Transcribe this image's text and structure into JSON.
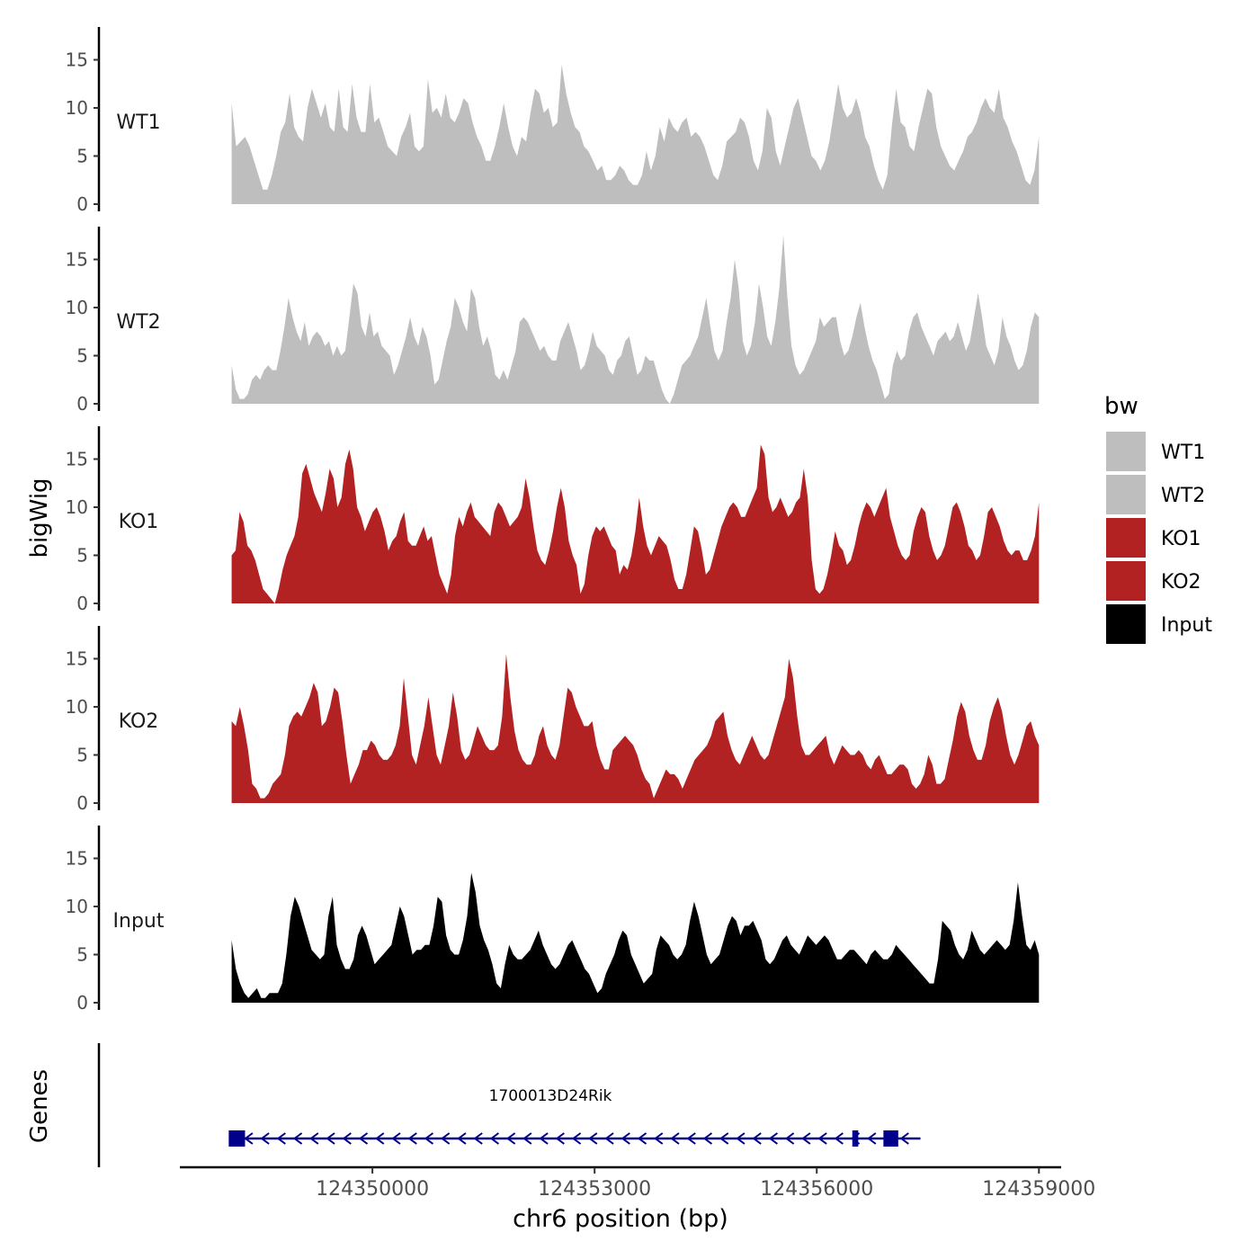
{
  "chart_data": {
    "type": "area",
    "ylabel": "bigWig",
    "xlabel": "chr6 position (bp)",
    "x_ticks": [
      124350000,
      124353000,
      124356000,
      124359000
    ],
    "x_tick_labels": [
      "124350000",
      "124353000",
      "124356000",
      "124359000"
    ],
    "xlim": [
      124347400,
      124359300
    ],
    "data_x_range": [
      124348100,
      124359000
    ],
    "ylim": [
      0,
      18
    ],
    "y_ticks": [
      0,
      5,
      10,
      15
    ],
    "y_tick_labels": [
      "0",
      "5",
      "10",
      "15"
    ],
    "legend": {
      "title": "bw",
      "position": "right",
      "entries": [
        {
          "label": "WT1",
          "color": "#BEBEBE"
        },
        {
          "label": "WT2",
          "color": "#BEBEBE"
        },
        {
          "label": "KO1",
          "color": "#B22222"
        },
        {
          "label": "KO2",
          "color": "#B22222"
        },
        {
          "label": "Input",
          "color": "#000000"
        }
      ]
    },
    "series": [
      {
        "name": "WT1",
        "color": "#BEBEBE",
        "values": [
          10.5,
          6,
          6.5,
          7,
          6,
          4.5,
          3,
          1.5,
          1.5,
          3,
          5,
          7.5,
          8.5,
          11.5,
          8,
          7,
          6.5,
          10,
          12,
          10.5,
          9,
          10.5,
          8,
          7.5,
          12,
          8,
          7.5,
          12.5,
          9,
          7.5,
          7.5,
          12.5,
          8.5,
          9,
          7.5,
          6,
          5.5,
          5,
          7,
          8,
          9.5,
          6,
          5.5,
          6,
          13,
          9.5,
          10,
          9,
          11.5,
          9,
          8.5,
          9.5,
          11,
          10.5,
          8.5,
          7,
          6,
          4.5,
          4.5,
          6,
          8,
          10.5,
          8,
          6,
          5,
          7,
          6.5,
          9.5,
          12,
          11.5,
          9.5,
          10,
          8,
          8.5,
          14.5,
          11.5,
          9.5,
          8,
          7.5,
          6,
          5.5,
          4.5,
          3.5,
          4,
          2.5,
          2.5,
          3,
          4,
          3.5,
          2.5,
          2,
          2,
          3,
          5.5,
          3.5,
          5,
          8,
          6.5,
          9,
          8,
          7.5,
          8.5,
          9,
          7,
          7.5,
          7,
          6,
          4.5,
          3,
          2.5,
          4,
          6.5,
          7,
          7.5,
          9,
          8.5,
          7,
          4.5,
          3.5,
          5.5,
          10,
          9,
          5.5,
          4,
          6,
          8,
          10,
          11,
          9,
          7,
          5,
          4.5,
          3.5,
          4.5,
          6.5,
          9.5,
          12.5,
          10,
          9,
          9.5,
          11,
          9.5,
          7,
          6,
          4,
          2.5,
          1.5,
          3,
          8,
          12,
          8.5,
          8,
          6,
          5.5,
          8,
          10,
          12,
          11.5,
          8,
          6,
          5,
          4,
          3.5,
          4.5,
          5.5,
          7,
          7.5,
          8.5,
          10,
          11,
          10,
          9.5,
          12,
          9,
          8,
          6.5,
          5.5,
          4,
          2.5,
          2,
          3.5,
          7
        ],
        "ticks_drawn": true
      },
      {
        "name": "WT2",
        "color": "#BEBEBE",
        "values": [
          4,
          1.5,
          0.5,
          0.5,
          1,
          2.5,
          3,
          2.5,
          3.5,
          4,
          3.5,
          3.5,
          5.5,
          8,
          11,
          9,
          7.5,
          6.5,
          8.5,
          6,
          7,
          7.5,
          7,
          6,
          6.5,
          5,
          6,
          5,
          5.5,
          9,
          12.5,
          11.5,
          8,
          7,
          9.5,
          7,
          7.5,
          6,
          5.5,
          5,
          3,
          4,
          5.5,
          7,
          9,
          7,
          6,
          8,
          7,
          5,
          2,
          2.5,
          4.5,
          6.5,
          8,
          11,
          10,
          8.5,
          7.5,
          12,
          11,
          8,
          6,
          7,
          5.5,
          3,
          2.5,
          3.5,
          2.5,
          4,
          5.5,
          8.5,
          9,
          8.5,
          7.5,
          6.5,
          5.5,
          6,
          5,
          4.5,
          4.5,
          6.5,
          7.5,
          8.5,
          7,
          5.5,
          3.5,
          4,
          5.5,
          7.5,
          6,
          5.5,
          5,
          3.5,
          3,
          4.5,
          5,
          6.5,
          7,
          5,
          3,
          3.5,
          5,
          4.5,
          4.5,
          3,
          1.5,
          0.5,
          0,
          1,
          2.5,
          4,
          4.5,
          5,
          6,
          7,
          9,
          11,
          8,
          5.5,
          4.5,
          5.5,
          8.5,
          11,
          15,
          12,
          6.5,
          5,
          6,
          8.5,
          12.5,
          10,
          7,
          6,
          8.5,
          12,
          17.5,
          11,
          6,
          4,
          3,
          3.5,
          4.5,
          5.5,
          6.5,
          9,
          8,
          8.5,
          9,
          9,
          6.5,
          5,
          5.5,
          7,
          9,
          10.5,
          8,
          6,
          4.5,
          3.5,
          2,
          0.5,
          1,
          4,
          5.5,
          4.5,
          5,
          7.5,
          9,
          9.5,
          8,
          7,
          6,
          5,
          6.5,
          7,
          7.5,
          6.5,
          7,
          8.5,
          7,
          5.5,
          6.5,
          9,
          11.5,
          9,
          6,
          5,
          4,
          5.5,
          9,
          7,
          6,
          4.5,
          3.5,
          4,
          5.5,
          8,
          9.5,
          9
        ],
        "ticks_drawn": true
      },
      {
        "name": "KO1",
        "color": "#B22222",
        "values": [
          5,
          5.5,
          9.5,
          8.5,
          6,
          5.5,
          4.5,
          3,
          1.5,
          1,
          0.5,
          0,
          1.5,
          3.5,
          5,
          6,
          7,
          9,
          13.5,
          14.5,
          13,
          11.5,
          10.5,
          9.5,
          11.5,
          14,
          13,
          10,
          11,
          14.5,
          16,
          14,
          10,
          9,
          7.5,
          8.5,
          9.5,
          10,
          9,
          7.5,
          5.5,
          6.5,
          7,
          8.5,
          9.5,
          6.5,
          6,
          6,
          7,
          8,
          6.5,
          7,
          5,
          3,
          2,
          1,
          3,
          7,
          9,
          8,
          9.5,
          10.5,
          9,
          8.5,
          8,
          7.5,
          7,
          9.5,
          10.5,
          10,
          9,
          8,
          8.5,
          9,
          10,
          13,
          11,
          8,
          5.5,
          4.5,
          4,
          5.5,
          7.5,
          10,
          12,
          10,
          6.5,
          5,
          4,
          1,
          2,
          5,
          7,
          8,
          7.5,
          8,
          7,
          6,
          5.5,
          3,
          4,
          3.5,
          5,
          7.5,
          11,
          8,
          6,
          5,
          6,
          7,
          6.5,
          6,
          4.5,
          2.5,
          1.5,
          1.5,
          3,
          5.5,
          8,
          7.5,
          5.5,
          3,
          3.5,
          5,
          6.5,
          8,
          9,
          10,
          10.5,
          10,
          9,
          9,
          10,
          11,
          12,
          16.5,
          15.5,
          11,
          9.5,
          10,
          11,
          10,
          9,
          9.5,
          10.5,
          11,
          14,
          11,
          4.5,
          1.5,
          1,
          1.5,
          3,
          5,
          7.5,
          6,
          5.5,
          4,
          4.5,
          6,
          8,
          9.5,
          10.5,
          10,
          9,
          10,
          11,
          12,
          9,
          7.5,
          6,
          5,
          4.5,
          5,
          7.5,
          9,
          10,
          9.5,
          7,
          5.5,
          4.5,
          5,
          6,
          8,
          10,
          10.5,
          9.5,
          8,
          6,
          5.5,
          4.5,
          5,
          7,
          9.5,
          10,
          9,
          8,
          6.5,
          5.5,
          5,
          5.5,
          5.5,
          4.5,
          4.5,
          5.5,
          7,
          10.5
        ],
        "ticks_drawn": true
      },
      {
        "name": "KO2",
        "color": "#B22222",
        "values": [
          8.5,
          8,
          10,
          8,
          5.5,
          2,
          1.5,
          0.5,
          0.5,
          1,
          2,
          2.5,
          3,
          5,
          8,
          9,
          9.5,
          9,
          10,
          11,
          12.5,
          11.5,
          8,
          8.5,
          10,
          12,
          11.5,
          8.5,
          5,
          2,
          3,
          4,
          5.5,
          5.5,
          6.5,
          6,
          5,
          4.5,
          4.5,
          5,
          6,
          8,
          13,
          9,
          5,
          4,
          6,
          8,
          11,
          8,
          5,
          4,
          6,
          8,
          11.5,
          9,
          5.5,
          4.5,
          5,
          6.5,
          8,
          7,
          6,
          5.5,
          5.5,
          6,
          9,
          15.5,
          11,
          7.5,
          5.5,
          4.5,
          4,
          4,
          5,
          7,
          8,
          6,
          5,
          4.5,
          6,
          9,
          12,
          11.5,
          10,
          9,
          8,
          8,
          8.5,
          6,
          4.5,
          3.5,
          3.5,
          5.5,
          6,
          6.5,
          7,
          6.5,
          6,
          5,
          3.5,
          2.5,
          2,
          0.5,
          1.5,
          2.5,
          3.5,
          3,
          3,
          2.5,
          1.5,
          2.5,
          3.5,
          4.5,
          5,
          5.5,
          6,
          7,
          8.5,
          9,
          9.5,
          7,
          5.5,
          4.5,
          4,
          5,
          6,
          7,
          6,
          5,
          4.5,
          5,
          6.5,
          8,
          9.5,
          11,
          15,
          13,
          9,
          6,
          5,
          5,
          5.5,
          6,
          6.5,
          7,
          5,
          4,
          5,
          6,
          5.5,
          5,
          5,
          5.5,
          5,
          4,
          3.5,
          4.5,
          5,
          4,
          3,
          3,
          3.5,
          4,
          4,
          3.5,
          2,
          1.5,
          2,
          3,
          5,
          4,
          2,
          2,
          2.5,
          4.5,
          6.5,
          9,
          10.5,
          9.5,
          7,
          5.5,
          4.5,
          4.5,
          6,
          8.5,
          10,
          11,
          9.5,
          7,
          5,
          4,
          5,
          6.5,
          8,
          8.5,
          7,
          6
        ],
        "ticks_drawn": true
      },
      {
        "name": "Input",
        "color": "#000000",
        "values": [
          6.5,
          3.5,
          2,
          1,
          0.5,
          1,
          1.5,
          0.5,
          0.5,
          1,
          1,
          1,
          2,
          5,
          9,
          11,
          10,
          8.5,
          7,
          5.5,
          5,
          4.5,
          5,
          9,
          11,
          6,
          4.5,
          3.5,
          3.5,
          4.5,
          7,
          8,
          7,
          5.5,
          4,
          4.5,
          5,
          5.5,
          6,
          8,
          10,
          9,
          7,
          5,
          5.5,
          5.5,
          6,
          6,
          8,
          11,
          10.5,
          7,
          5.5,
          5,
          5,
          6.5,
          9,
          13.5,
          11.5,
          8,
          6.5,
          5.5,
          4,
          2,
          1.5,
          4,
          6,
          5,
          4.5,
          4.5,
          5,
          5.5,
          6.5,
          7.5,
          6,
          5,
          4,
          3.5,
          4,
          5,
          6,
          6.5,
          5.5,
          4.5,
          3.5,
          3,
          2,
          1,
          1.5,
          3,
          4,
          5,
          6.5,
          7.5,
          7,
          5,
          4,
          3,
          2,
          2.5,
          3,
          5.5,
          7,
          6.5,
          6,
          5,
          4.5,
          5,
          6,
          8.5,
          10.5,
          9,
          7,
          5,
          4,
          4.5,
          5,
          6.5,
          8,
          9,
          8.5,
          7,
          8,
          8,
          8.5,
          7.5,
          6.5,
          4.5,
          4,
          4.5,
          5.5,
          6.5,
          7,
          6,
          5.5,
          5,
          6,
          7,
          6.5,
          6,
          6.5,
          7,
          6.5,
          5.5,
          4.5,
          4.5,
          5,
          5.5,
          5.5,
          5,
          4.5,
          4,
          5,
          5.5,
          5,
          4.5,
          4.5,
          5,
          6,
          5.5,
          5,
          4.5,
          4,
          3.5,
          3,
          2.5,
          2,
          2,
          4.5,
          8.5,
          8,
          7.5,
          6,
          5,
          4.5,
          5.5,
          7.5,
          6.5,
          5.5,
          5,
          5.5,
          6,
          6.5,
          6,
          5.5,
          6,
          8.5,
          12.5,
          9,
          6,
          5.5,
          6.5,
          5
        ],
        "ticks_drawn": true
      }
    ],
    "genes_track": {
      "label": "Genes",
      "gene_name": "1700013D24Rik",
      "strand": "-",
      "start": 124348100,
      "end": 124357400,
      "exons": [
        {
          "start": 124348060,
          "end": 124348280
        },
        {
          "start": 124356480,
          "end": 124356560
        },
        {
          "start": 124356900,
          "end": 124357100
        }
      ],
      "color": "#00008B"
    }
  }
}
